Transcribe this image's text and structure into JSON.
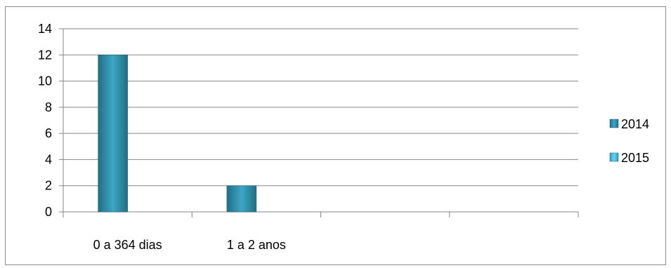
{
  "chart_data": {
    "type": "bar",
    "categories": [
      "0 a 364 dias",
      "1 a 2 anos",
      "",
      ""
    ],
    "series": [
      {
        "name": "2014",
        "values": [
          12,
          2,
          0,
          0
        ],
        "color": "#2e8aa3"
      },
      {
        "name": "2015",
        "values": [
          0,
          0,
          0,
          0
        ],
        "color": "#3bb5d8"
      }
    ],
    "ylim": [
      0,
      14
    ],
    "yticks": [
      0,
      2,
      4,
      6,
      8,
      10,
      12,
      14
    ],
    "grid": true,
    "legend": "right"
  }
}
